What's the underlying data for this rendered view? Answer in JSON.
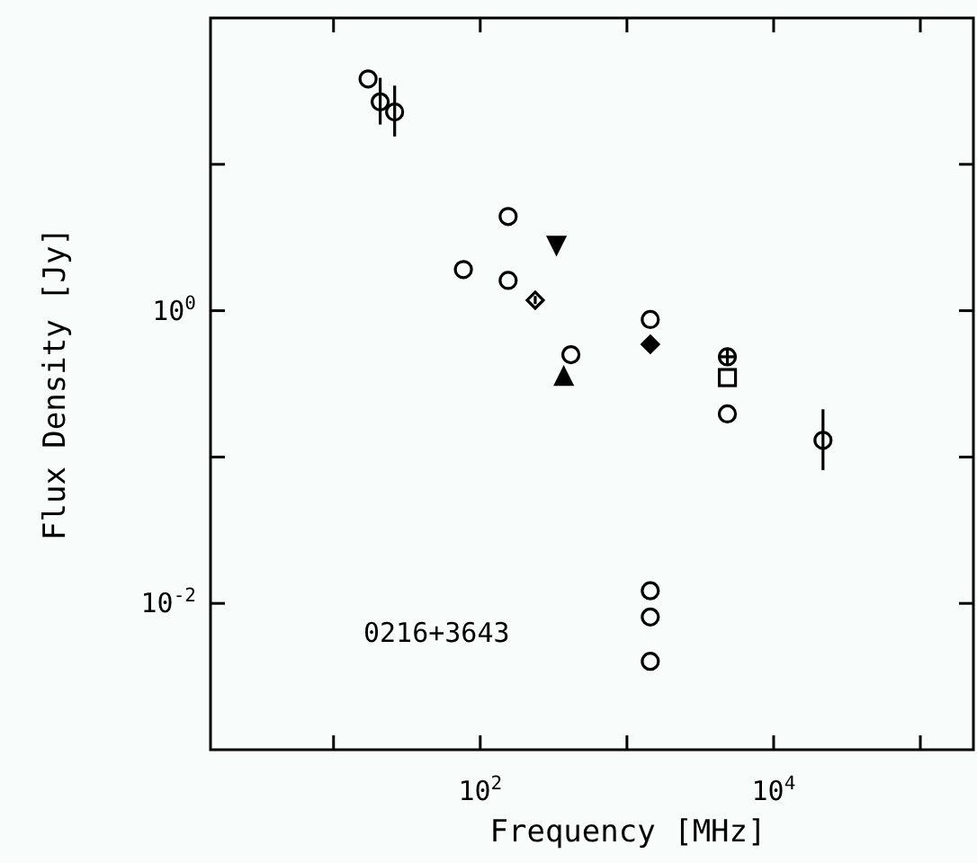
{
  "chart_data": {
    "type": "scatter",
    "xlabel": "Frequency [MHz]",
    "ylabel": "Flux Density [Jy]",
    "log": "xy",
    "grid": false,
    "xlim": [
      1.45,
      230000
    ],
    "ylim": [
      0.001,
      100
    ],
    "xticks": [
      {
        "value": 10,
        "label": null
      },
      {
        "value": 100,
        "label": "10$^{2}$"
      },
      {
        "value": 1000,
        "label": null
      },
      {
        "value": 10000,
        "label": "10$^{4}$"
      },
      {
        "value": 100000,
        "label": null
      }
    ],
    "yticks": [
      {
        "value": 0.01,
        "label": "10$^{-2}$"
      },
      {
        "value": 0.1,
        "label": null
      },
      {
        "value": 1,
        "label": "10$^{0}$"
      },
      {
        "value": 10,
        "label": null
      }
    ],
    "annotations": [
      "0216+3643"
    ],
    "series": [
      {
        "color": "#000000",
        "marker": "circle",
        "x": [
          17.2,
          20.8,
          26.1,
          76.8,
          155,
          155,
          415,
          1443,
          4840,
          21700,
          1443,
          1443,
          1443
        ],
        "values": [
          38.3,
          26.7,
          22.8,
          1.91,
          4.4,
          1.61,
          0.5,
          0.87,
          0.197,
          0.13,
          0.0122,
          0.00807,
          0.00402
        ],
        "errors": [
          null,
          [
            18.7,
            39
          ],
          [
            15.5,
            34.5
          ],
          null,
          null,
          null,
          null,
          null,
          null,
          [
            0.0814,
            0.212
          ],
          null,
          null,
          null
        ]
      },
      {
        "color": "#000000",
        "marker": "diamond",
        "x": [
          237
        ],
        "values": [
          1.18
        ],
        "errors": [
          [
            1.11,
            1.26
          ]
        ]
      },
      {
        "color": "#000000",
        "marker": "triangle-down",
        "x": [
          331
        ],
        "values": [
          2.8
        ]
      },
      {
        "color": "#000000",
        "marker": "triangle",
        "x": [
          371
        ],
        "values": [
          0.356
        ]
      },
      {
        "color": "#000000",
        "marker": "diamond",
        "x": [
          1443
        ],
        "values": [
          0.59
        ]
      },
      {
        "color": "#000000",
        "marker": "cross",
        "x": [
          4840
        ],
        "values": [
          0.484
        ]
      },
      {
        "color": "#000000",
        "marker": "square",
        "x": [
          4840
        ],
        "values": [
          0.349
        ]
      }
    ]
  }
}
